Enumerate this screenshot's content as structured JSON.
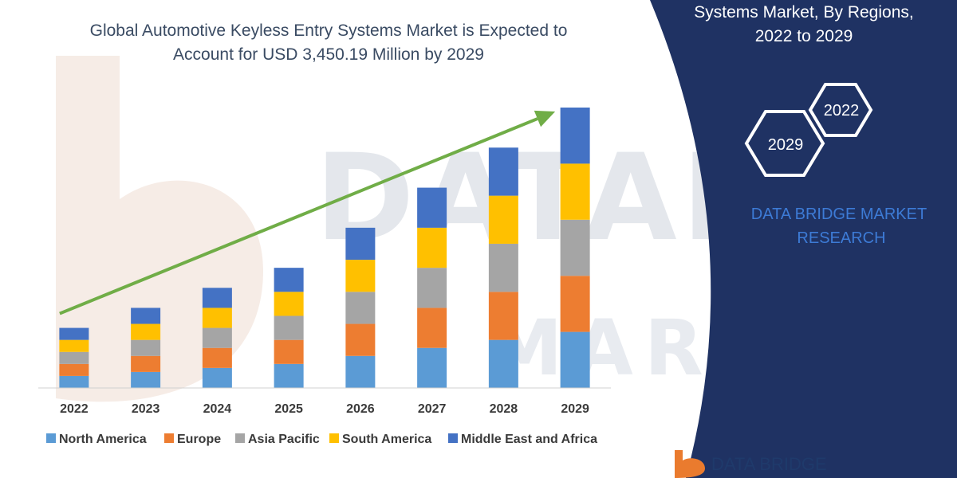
{
  "title_lines": [
    "Global Automotive Keyless Entry Systems Market is Expected to",
    "Account for USD 3,450.19 Million by 2029"
  ],
  "side_panel": {
    "title_lines": [
      "Systems Market, By Regions,",
      "2022 to 2029"
    ],
    "hex_labels": [
      "2022",
      "2029"
    ],
    "brand_lines": [
      "DATA BRIDGE MARKET",
      "RESEARCH"
    ],
    "background_color": "#1f3263",
    "logo_text": "DATA BRIDGE"
  },
  "chart_data": {
    "type": "bar",
    "stacked": true,
    "title": "Global Automotive Keyless Entry Systems Market is Expected to Account for USD 3,450.19 Million by 2029",
    "categories": [
      "2022",
      "2023",
      "2024",
      "2025",
      "2026",
      "2027",
      "2028",
      "2029"
    ],
    "series": [
      {
        "name": "North America",
        "color": "#5b9bd5",
        "values": [
          15,
          20,
          25,
          30,
          40,
          50,
          60,
          70
        ]
      },
      {
        "name": "Europe",
        "color": "#ed7d31",
        "values": [
          15,
          20,
          25,
          30,
          40,
          50,
          60,
          70
        ]
      },
      {
        "name": "Asia Pacific",
        "color": "#a5a5a5",
        "values": [
          15,
          20,
          25,
          30,
          40,
          50,
          60,
          70
        ]
      },
      {
        "name": "South America",
        "color": "#ffc000",
        "values": [
          15,
          20,
          25,
          30,
          40,
          50,
          60,
          70
        ]
      },
      {
        "name": "Middle East and Africa",
        "color": "#4472c4",
        "values": [
          15,
          20,
          25,
          30,
          40,
          50,
          60,
          70
        ]
      }
    ],
    "trend_arrow": {
      "color": "#70ad47",
      "from_category": "2022",
      "to_category": "2029"
    },
    "grid": false,
    "legend_position": "bottom"
  }
}
